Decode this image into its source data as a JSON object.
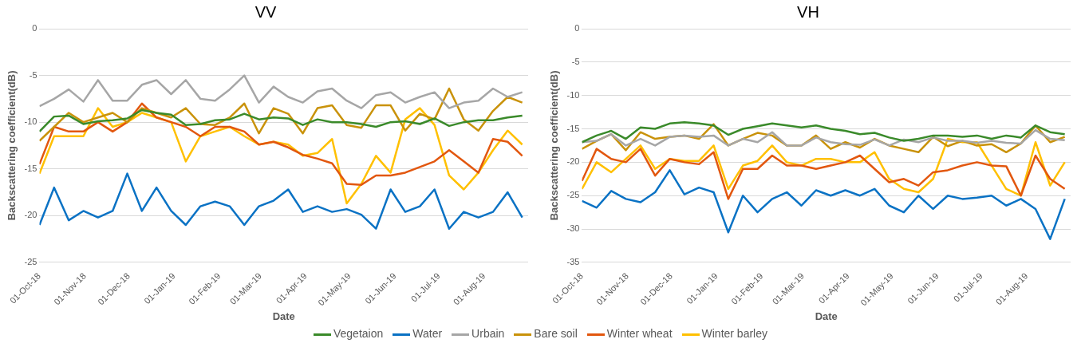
{
  "chart_data": [
    {
      "type": "line",
      "title": "VV",
      "xlabel": "Date",
      "ylabel": "Backscattering coefficient(dB)",
      "grid": "y",
      "legend": "bottom",
      "marker": "none",
      "line_style": "solid",
      "xlim": [
        "2018-10-01",
        "2019-08-31"
      ],
      "ylim": [
        -25,
        0
      ],
      "yticks": [
        -25,
        -20,
        -15,
        -10,
        -5,
        0
      ],
      "xticks": [
        {
          "value": "2018-10-01",
          "label": "01-Oct-18"
        },
        {
          "value": "2018-11-01",
          "label": "01-Nov-18"
        },
        {
          "value": "2018-12-01",
          "label": "01-Dec-18"
        },
        {
          "value": "2019-01-01",
          "label": "01-Jan-19"
        },
        {
          "value": "2019-02-01",
          "label": "01-Feb-19"
        },
        {
          "value": "2019-03-01",
          "label": "01-Mar-19"
        },
        {
          "value": "2019-04-01",
          "label": "01-Apr-19"
        },
        {
          "value": "2019-05-01",
          "label": "01-May-19"
        },
        {
          "value": "2019-06-01",
          "label": "01-Jun-19"
        },
        {
          "value": "2019-07-01",
          "label": "01-Jul-19"
        },
        {
          "value": "2019-08-01",
          "label": "01-Aug-19"
        }
      ],
      "x": [
        "2018-10-01",
        "2018-10-11",
        "2018-10-21",
        "2018-10-31",
        "2018-11-10",
        "2018-11-20",
        "2018-11-30",
        "2018-12-10",
        "2018-12-20",
        "2018-12-30",
        "2019-01-09",
        "2019-01-19",
        "2019-01-29",
        "2019-02-08",
        "2019-02-18",
        "2019-02-28",
        "2019-03-10",
        "2019-03-20",
        "2019-03-30",
        "2019-04-09",
        "2019-04-19",
        "2019-04-29",
        "2019-05-09",
        "2019-05-19",
        "2019-05-29",
        "2019-06-08",
        "2019-06-18",
        "2019-06-28",
        "2019-07-08",
        "2019-07-18",
        "2019-07-28",
        "2019-08-07",
        "2019-08-17",
        "2019-08-27"
      ],
      "series": [
        {
          "name": "Vegetaion",
          "color": "#3a8a2a",
          "values": [
            -11,
            -9.4,
            -9.3,
            -10.2,
            -9.9,
            -9.8,
            -9.6,
            -8.7,
            -9,
            -9.2,
            -10.3,
            -10.2,
            -9.8,
            -9.7,
            -9.1,
            -9.7,
            -9.5,
            -9.6,
            -10.3,
            -9.7,
            -10,
            -10,
            -10.2,
            -10.5,
            -10,
            -9.9,
            -10.2,
            -9.6,
            -10.4,
            -10,
            -9.8,
            -9.8,
            -9.5,
            -9.3
          ]
        },
        {
          "name": "Water",
          "color": "#0a72c4",
          "values": [
            -21,
            -17,
            -20.5,
            -19.5,
            -20.2,
            -19.5,
            -15.5,
            -19.5,
            -17,
            -19.5,
            -21,
            -19,
            -18.5,
            -19,
            -21,
            -19,
            -18.4,
            -17.2,
            -19.6,
            -19,
            -19.6,
            -19.3,
            -19.9,
            -21.4,
            -17.2,
            -19.6,
            -19,
            -17.2,
            -21.4,
            -19.6,
            -20.2,
            -19.6,
            -17.5,
            -20.2
          ]
        },
        {
          "name": "Urbain",
          "color": "#a6a6a6",
          "values": [
            -8.3,
            -7.5,
            -6.5,
            -7.8,
            -5.5,
            -7.7,
            -7.7,
            -6,
            -5.5,
            -7,
            -5.5,
            -7.5,
            -7.7,
            -6.5,
            -5,
            -7.9,
            -6.2,
            -7.3,
            -7.9,
            -6.7,
            -6.4,
            -7.7,
            -8.5,
            -7.1,
            -6.8,
            -7.9,
            -7.3,
            -6.8,
            -8.5,
            -7.9,
            -7.7,
            -6.4,
            -7.3,
            -6.8
          ]
        },
        {
          "name": "Bare soil",
          "color": "#c9920a",
          "values": [
            -12,
            -10.5,
            -9,
            -10,
            -9.5,
            -9,
            -10,
            -8.5,
            -9,
            -9.5,
            -8.5,
            -10.2,
            -10.3,
            -9.5,
            -8,
            -11.2,
            -8.5,
            -9.1,
            -11.2,
            -8.5,
            -8.2,
            -10.3,
            -10.6,
            -8.2,
            -8.2,
            -10.9,
            -9.1,
            -9.7,
            -6.4,
            -9.7,
            -10.9,
            -8.8,
            -7.3,
            -7.9
          ]
        },
        {
          "name": "Winter wheat",
          "color": "#e2570f",
          "values": [
            -14.5,
            -10.5,
            -11,
            -11,
            -10,
            -11,
            -10,
            -8,
            -9.5,
            -10,
            -10.5,
            -11.5,
            -10.5,
            -10.5,
            -11,
            -12.4,
            -12.1,
            -12.7,
            -13.5,
            -13.9,
            -14.4,
            -16.6,
            -16.7,
            -15.7,
            -15.7,
            -15.4,
            -14.8,
            -14.2,
            -13,
            -14.2,
            -15.4,
            -11.8,
            -12.1,
            -13.6
          ]
        },
        {
          "name": "Winter barley",
          "color": "#ffc000",
          "values": [
            -15.5,
            -11.5,
            -11.5,
            -11.5,
            -8.5,
            -10.5,
            -10,
            -9,
            -9.5,
            -10,
            -14.2,
            -11.5,
            -11,
            -10.5,
            -11.5,
            -12.4,
            -12.1,
            -12.4,
            -13.6,
            -13.3,
            -11.8,
            -18.7,
            -16.6,
            -13.6,
            -15.4,
            -9.7,
            -8.5,
            -10.3,
            -15.7,
            -17.2,
            -15.4,
            -13,
            -10.9,
            -12.4
          ]
        }
      ]
    },
    {
      "type": "line",
      "title": "VH",
      "xlabel": "Date",
      "ylabel": "Backscattering coefficient(dB)",
      "grid": "y",
      "marker": "none",
      "line_style": "solid",
      "xlim": [
        "2018-10-01",
        "2019-08-31"
      ],
      "ylim": [
        -35,
        0
      ],
      "yticks": [
        -35,
        -30,
        -25,
        -20,
        -15,
        -10,
        -5,
        0
      ],
      "xticks": [
        {
          "value": "2018-10-01",
          "label": "01-Oct-18"
        },
        {
          "value": "2018-11-01",
          "label": "01-Nov-18"
        },
        {
          "value": "2018-12-01",
          "label": "01-Dec-18"
        },
        {
          "value": "2019-01-01",
          "label": "01-Jan-19"
        },
        {
          "value": "2019-02-01",
          "label": "01-Feb-19"
        },
        {
          "value": "2019-03-01",
          "label": "01-Mar-19"
        },
        {
          "value": "2019-04-01",
          "label": "01-Apr-19"
        },
        {
          "value": "2019-05-01",
          "label": "01-May-19"
        },
        {
          "value": "2019-06-01",
          "label": "01-Jun-19"
        },
        {
          "value": "2019-07-01",
          "label": "01-Jul-19"
        },
        {
          "value": "2019-08-01",
          "label": "01-Aug-19"
        }
      ],
      "x": [
        "2018-10-01",
        "2018-10-11",
        "2018-10-21",
        "2018-10-31",
        "2018-11-10",
        "2018-11-20",
        "2018-11-30",
        "2018-12-10",
        "2018-12-20",
        "2018-12-30",
        "2019-01-09",
        "2019-01-19",
        "2019-01-29",
        "2019-02-08",
        "2019-02-18",
        "2019-02-28",
        "2019-03-10",
        "2019-03-20",
        "2019-03-30",
        "2019-04-09",
        "2019-04-19",
        "2019-04-29",
        "2019-05-09",
        "2019-05-19",
        "2019-05-29",
        "2019-06-08",
        "2019-06-18",
        "2019-06-28",
        "2019-07-08",
        "2019-07-18",
        "2019-07-28",
        "2019-08-07",
        "2019-08-17",
        "2019-08-27"
      ],
      "series": [
        {
          "color": "#3a8a2a",
          "values": [
            -17,
            -16,
            -15.3,
            -16.5,
            -14.8,
            -15,
            -14.2,
            -14,
            -14.2,
            -14.5,
            -15.9,
            -15,
            -14.6,
            -14.2,
            -14.5,
            -14.8,
            -14.5,
            -15,
            -15.3,
            -15.8,
            -15.6,
            -16.3,
            -16.8,
            -16.5,
            -16,
            -16,
            -16.2,
            -16,
            -16.5,
            -16,
            -16.3,
            -14.5,
            -15.5,
            -15.8
          ]
        },
        {
          "color": "#0a72c4",
          "values": [
            -25.8,
            -26.8,
            -24.3,
            -25.5,
            -26,
            -24.5,
            -21.2,
            -24.8,
            -23.8,
            -24.5,
            -30.5,
            -25,
            -27.5,
            -25.5,
            -24.5,
            -26.5,
            -24.2,
            -25,
            -24.2,
            -25,
            -24,
            -26.5,
            -27.5,
            -25,
            -27,
            -25,
            -25.5,
            -25.3,
            -25,
            -26.5,
            -25.5,
            -27,
            -31.5,
            -25.5
          ]
        },
        {
          "color": "#a6a6a6",
          "values": [
            -17,
            -16.8,
            -15.8,
            -17.5,
            -16.5,
            -17.5,
            -16.2,
            -16,
            -16.2,
            -16,
            -17.5,
            -16.5,
            -17,
            -15.5,
            -17.5,
            -17.5,
            -16.3,
            -17,
            -17.3,
            -17.4,
            -16.6,
            -17.5,
            -16.6,
            -17,
            -16.3,
            -16.8,
            -16.8,
            -17.1,
            -16.8,
            -17.1,
            -17.2,
            -15.2,
            -16.5,
            -16.7
          ]
        },
        {
          "color": "#c9920a",
          "values": [
            -18,
            -16.8,
            -15.8,
            -18.2,
            -15.5,
            -16.5,
            -16.2,
            -16,
            -16.5,
            -14.3,
            -17.5,
            -16.5,
            -15.6,
            -16,
            -17.5,
            -17.5,
            -16,
            -18,
            -17,
            -17.8,
            -16.5,
            -17.5,
            -18,
            -18.5,
            -16.2,
            -17.6,
            -16.8,
            -17.5,
            -17.3,
            -18.5,
            -17.2,
            -14.5,
            -17,
            -16.2
          ]
        },
        {
          "color": "#e2570f",
          "values": [
            -22.8,
            -18,
            -19.5,
            -20,
            -18,
            -22,
            -19.5,
            -20,
            -20.3,
            -18.5,
            -25.5,
            -21,
            -21,
            -19,
            -20.5,
            -20.5,
            -21,
            -20.5,
            -20,
            -19,
            -21,
            -23,
            -22.5,
            -23.5,
            -21.5,
            -21.2,
            -20.5,
            -20,
            -20.5,
            -20.6,
            -25,
            -19,
            -22.5,
            -24
          ]
        },
        {
          "color": "#ffc000",
          "values": [
            -24,
            -20,
            -21.5,
            -19.5,
            -17.5,
            -21,
            -19.5,
            -19.8,
            -19.8,
            -17.5,
            -24,
            -20.5,
            -19.8,
            -17.5,
            -20,
            -20.5,
            -19.5,
            -19.5,
            -20,
            -20,
            -18.5,
            -22.5,
            -24,
            -24.5,
            -22.5,
            -16.5,
            -17,
            -17,
            -20.5,
            -24,
            -25,
            -17,
            -23.5,
            -20
          ]
        }
      ]
    }
  ]
}
